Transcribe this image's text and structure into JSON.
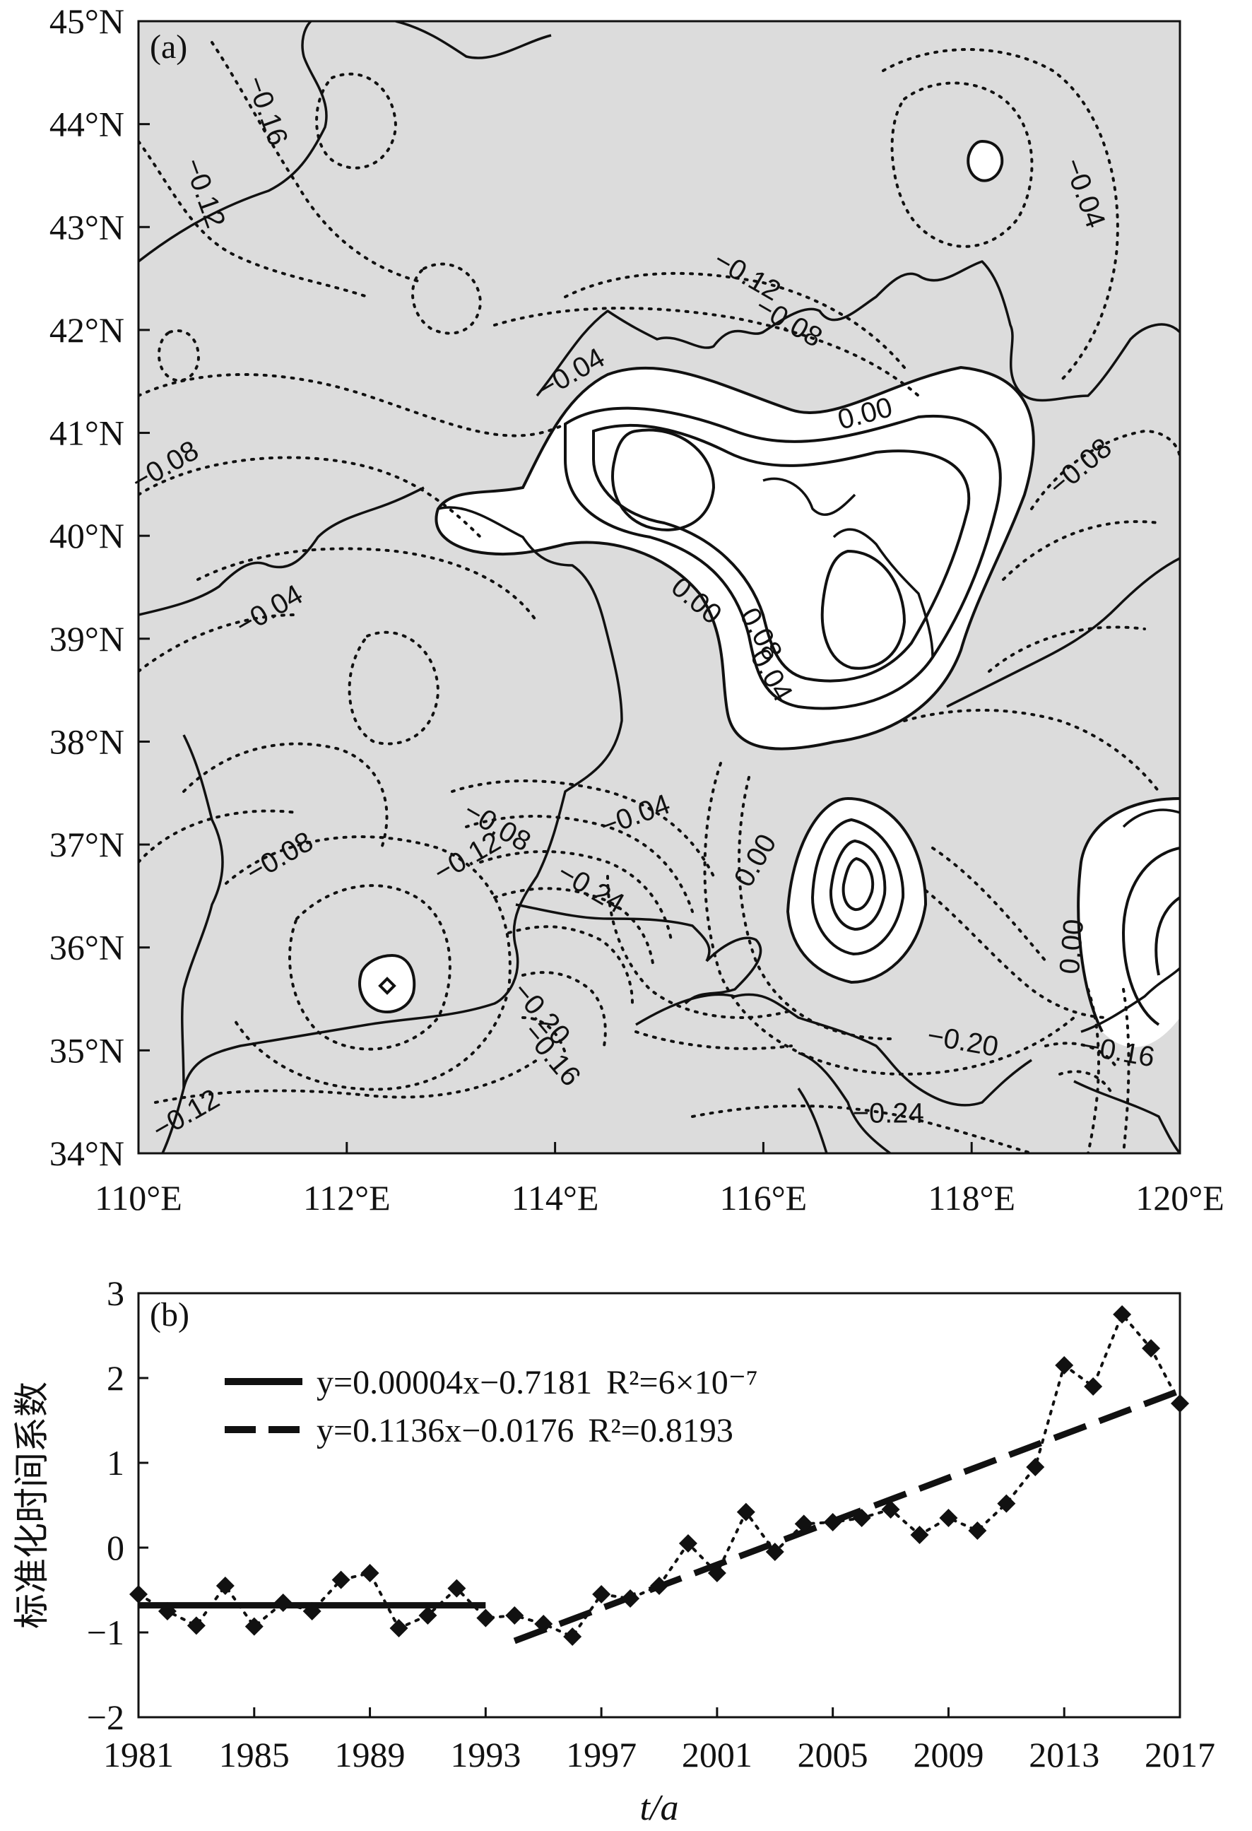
{
  "chart_data": [
    {
      "type": "contour-map",
      "panel_label": "(a)",
      "x_ticks": [
        "110°E",
        "112°E",
        "114°E",
        "116°E",
        "118°E",
        "120°E"
      ],
      "y_ticks": [
        "34°N",
        "35°N",
        "36°N",
        "37°N",
        "38°N",
        "39°N",
        "40°N",
        "41°N",
        "42°N",
        "43°N",
        "44°N",
        "45°N"
      ],
      "xlim": [
        110,
        120
      ],
      "ylim": [
        34,
        45
      ],
      "background_color": "#dcdcdc",
      "positive_fill_color": "#ffffff",
      "contour_labels": [
        {
          "text": "−0.16",
          "lon": 111.15,
          "lat": 44.1,
          "rot": 70
        },
        {
          "text": "−0.12",
          "lon": 110.55,
          "lat": 43.3,
          "rot": 70
        },
        {
          "text": "−0.04",
          "lon": 119.0,
          "lat": 43.3,
          "rot": 70
        },
        {
          "text": "−0.12",
          "lon": 115.8,
          "lat": 42.45,
          "rot": 30
        },
        {
          "text": "−0.08",
          "lon": 116.2,
          "lat": 42.0,
          "rot": 30
        },
        {
          "text": "−0.04",
          "lon": 114.2,
          "lat": 41.5,
          "rot": -30
        },
        {
          "text": "0.00",
          "lon": 117.0,
          "lat": 41.1,
          "rot": -15
        },
        {
          "text": "−0.08",
          "lon": 110.3,
          "lat": 40.6,
          "rot": -30
        },
        {
          "text": "−0.08",
          "lon": 119.1,
          "lat": 40.6,
          "rot": -40
        },
        {
          "text": "−0.04",
          "lon": 111.3,
          "lat": 39.2,
          "rot": -30
        },
        {
          "text": "0.00",
          "lon": 115.3,
          "lat": 39.3,
          "rot": 40
        },
        {
          "text": "0.08",
          "lon": 115.9,
          "lat": 39.0,
          "rot": 60
        },
        {
          "text": "0.04",
          "lon": 116.0,
          "lat": 38.6,
          "rot": 60
        },
        {
          "text": "−0.08",
          "lon": 113.4,
          "lat": 37.1,
          "rot": 30
        },
        {
          "text": "−0.04",
          "lon": 114.8,
          "lat": 37.2,
          "rot": -20
        },
        {
          "text": "−0.12",
          "lon": 113.2,
          "lat": 36.8,
          "rot": -30
        },
        {
          "text": "−0.24",
          "lon": 114.3,
          "lat": 36.5,
          "rot": 30
        },
        {
          "text": "−0.08",
          "lon": 111.4,
          "lat": 36.8,
          "rot": -30
        },
        {
          "text": "0.00",
          "lon": 116.0,
          "lat": 36.8,
          "rot": -60
        },
        {
          "text": "0.00",
          "lon": 119.05,
          "lat": 36.0,
          "rot": -85
        },
        {
          "text": "−0.20",
          "lon": 113.8,
          "lat": 35.3,
          "rot": 50
        },
        {
          "text": "−0.16",
          "lon": 113.9,
          "lat": 34.9,
          "rot": 50
        },
        {
          "text": "−0.20",
          "lon": 117.9,
          "lat": 35.0,
          "rot": 10
        },
        {
          "text": "−0.16",
          "lon": 119.4,
          "lat": 34.9,
          "rot": 10
        },
        {
          "text": "−0.24",
          "lon": 117.2,
          "lat": 34.3,
          "rot": 0
        },
        {
          "text": "−0.12",
          "lon": 110.5,
          "lat": 34.3,
          "rot": -30
        }
      ]
    },
    {
      "type": "line",
      "panel_label": "(b)",
      "x": [
        1981,
        1982,
        1983,
        1984,
        1985,
        1986,
        1987,
        1988,
        1989,
        1990,
        1991,
        1992,
        1993,
        1994,
        1995,
        1996,
        1997,
        1998,
        1999,
        2000,
        2001,
        2002,
        2003,
        2004,
        2005,
        2006,
        2007,
        2008,
        2009,
        2010,
        2011,
        2012,
        2013,
        2014,
        2015,
        2016,
        2017
      ],
      "series": [
        {
          "values": [
            -0.55,
            -0.75,
            -0.92,
            -0.45,
            -0.93,
            -0.65,
            -0.75,
            -0.38,
            -0.3,
            -0.95,
            -0.8,
            -0.48,
            -0.83,
            -0.8,
            -0.9,
            -1.05,
            -0.55,
            -0.6,
            -0.45,
            0.05,
            -0.3,
            0.42,
            -0.05,
            0.28,
            0.3,
            0.35,
            0.45,
            0.15,
            0.35,
            0.2,
            0.52,
            0.95,
            2.15,
            1.9,
            2.75,
            2.35,
            1.7
          ],
          "style": "dotted-diamond"
        }
      ],
      "trend_lines": [
        {
          "equation": "y=0.00004x−0.7181",
          "r2_text": "R²=6×10⁻⁷",
          "style": "solid",
          "x_range": [
            1981,
            1993
          ],
          "y_start": -0.68,
          "y_end": -0.68
        },
        {
          "equation": "y=0.1136x−0.0176",
          "r2_text": "R²=0.8193",
          "style": "dashed",
          "x_range": [
            1994,
            2017
          ],
          "y_start": -1.1,
          "y_end": 1.85
        }
      ],
      "x_ticks": [
        "1981",
        "1985",
        "1989",
        "1993",
        "1997",
        "2001",
        "2005",
        "2009",
        "2013",
        "2017"
      ],
      "y_ticks": [
        "−2",
        "−1",
        "0",
        "1",
        "2",
        "3"
      ],
      "xlabel": "t/a",
      "ylabel": "标准化时间系数",
      "xlim": [
        1981,
        2017
      ],
      "ylim": [
        -2,
        3
      ],
      "legend_position": "top-left"
    }
  ]
}
